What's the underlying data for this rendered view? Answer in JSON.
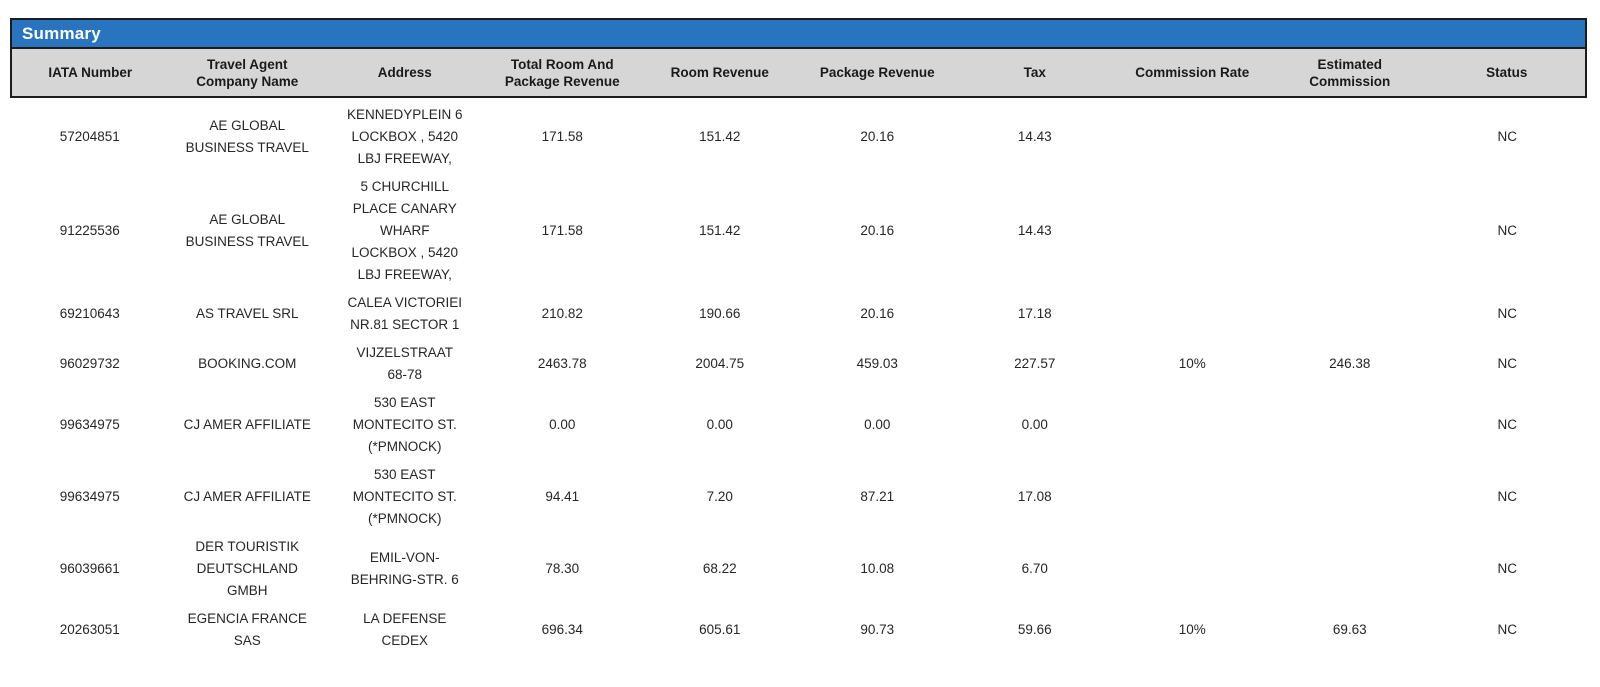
{
  "report": {
    "title": "Summary"
  },
  "colors": {
    "title_bar_bg": "#2874BE",
    "title_text": "#FFFFFF",
    "header_bg": "#D6D6D6",
    "border": "#1C1C1C",
    "body_text": "#262626"
  },
  "table": {
    "columns": [
      {
        "key": "iata",
        "label": "IATA Number"
      },
      {
        "key": "company",
        "label": "Travel Agent Company Name"
      },
      {
        "key": "address",
        "label": "Address"
      },
      {
        "key": "total",
        "label": "Total Room And Package Revenue"
      },
      {
        "key": "room",
        "label": "Room Revenue"
      },
      {
        "key": "package",
        "label": "Package Revenue"
      },
      {
        "key": "tax",
        "label": "Tax"
      },
      {
        "key": "rate",
        "label": "Commission Rate"
      },
      {
        "key": "est",
        "label": "Estimated Commission"
      },
      {
        "key": "status",
        "label": "Status"
      }
    ],
    "rows": [
      {
        "iata": "57204851",
        "company": "AE GLOBAL BUSINESS TRAVEL",
        "address": "KENNEDYPLEIN 6 LOCKBOX , 5420 LBJ FREEWAY,",
        "total": "171.58",
        "room": "151.42",
        "package": "20.16",
        "tax": "14.43",
        "rate": "",
        "est": "",
        "status": "NC"
      },
      {
        "iata": "91225536",
        "company": "AE GLOBAL BUSINESS TRAVEL",
        "address": "5 CHURCHILL PLACE CANARY WHARF LOCKBOX , 5420 LBJ FREEWAY,",
        "total": "171.58",
        "room": "151.42",
        "package": "20.16",
        "tax": "14.43",
        "rate": "",
        "est": "",
        "status": "NC"
      },
      {
        "iata": "69210643",
        "company": "AS TRAVEL SRL",
        "address": "CALEA VICTORIEI NR.81 SECTOR 1",
        "total": "210.82",
        "room": "190.66",
        "package": "20.16",
        "tax": "17.18",
        "rate": "",
        "est": "",
        "status": "NC"
      },
      {
        "iata": "96029732",
        "company": "BOOKING.COM",
        "address": "VIJZELSTRAAT 68-78",
        "total": "2463.78",
        "room": "2004.75",
        "package": "459.03",
        "tax": "227.57",
        "rate": "10%",
        "est": "246.38",
        "status": "NC"
      },
      {
        "iata": "99634975",
        "company": "CJ AMER AFFILIATE",
        "address": "530 EAST MONTECITO ST. (*PMNOCK)",
        "total": "0.00",
        "room": "0.00",
        "package": "0.00",
        "tax": "0.00",
        "rate": "",
        "est": "",
        "status": "NC"
      },
      {
        "iata": "99634975",
        "company": "CJ AMER AFFILIATE",
        "address": "530 EAST MONTECITO ST. (*PMNOCK)",
        "total": "94.41",
        "room": "7.20",
        "package": "87.21",
        "tax": "17.08",
        "rate": "",
        "est": "",
        "status": "NC"
      },
      {
        "iata": "96039661",
        "company": "DER TOURISTIK DEUTSCHLAND GMBH",
        "address": "EMIL-VON-BEHRING-STR. 6",
        "total": "78.30",
        "room": "68.22",
        "package": "10.08",
        "tax": "6.70",
        "rate": "",
        "est": "",
        "status": "NC"
      },
      {
        "iata": "20263051",
        "company": "EGENCIA FRANCE SAS",
        "address": "LA DEFENSE CEDEX",
        "total": "696.34",
        "room": "605.61",
        "package": "90.73",
        "tax": "59.66",
        "rate": "10%",
        "est": "69.63",
        "status": "NC"
      }
    ]
  }
}
